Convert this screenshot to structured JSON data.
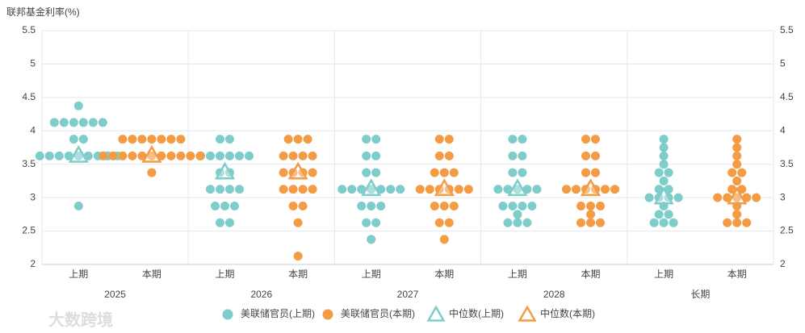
{
  "chart_data": {
    "type": "dot",
    "y_label": "联邦基金利率(%)",
    "groups": [
      "2025",
      "2026",
      "2027",
      "2028",
      "长期"
    ],
    "subcategories": [
      "上期",
      "本期"
    ],
    "ylim": [
      2,
      5.5
    ],
    "yticks": [
      2,
      2.5,
      3,
      3.5,
      4,
      4.5,
      5,
      5.5
    ],
    "grid": true,
    "series": [
      {
        "name": "美联储官员(上期)",
        "color": "#7ecdcb",
        "marker": "circle",
        "sub": 0,
        "values": [
          [
            4.375,
            4.125,
            4.125,
            4.125,
            4.125,
            4.125,
            4.125,
            3.875,
            3.875,
            3.625,
            3.625,
            3.625,
            3.625,
            3.625,
            3.625,
            3.625,
            3.625,
            3.625,
            2.875
          ],
          [
            3.875,
            3.875,
            3.625,
            3.625,
            3.625,
            3.625,
            3.625,
            3.625,
            3.375,
            3.375,
            3.125,
            3.125,
            3.125,
            3.125,
            2.875,
            2.875,
            2.875,
            2.625,
            2.625
          ],
          [
            3.875,
            3.875,
            3.625,
            3.625,
            3.375,
            3.375,
            3.125,
            3.125,
            3.125,
            3.125,
            3.125,
            3.125,
            3.125,
            2.875,
            2.875,
            2.875,
            2.625,
            2.625,
            2.375
          ],
          [
            3.875,
            3.875,
            3.625,
            3.625,
            3.375,
            3.375,
            3.125,
            3.125,
            3.125,
            3.125,
            3.125,
            2.875,
            2.875,
            2.875,
            2.875,
            2.75,
            2.625,
            2.625,
            2.625
          ],
          [
            3.875,
            3.75,
            3.625,
            3.5,
            3.375,
            3.375,
            3.25,
            3.125,
            3.125,
            3,
            3,
            3,
            3,
            2.875,
            2.75,
            2.75,
            2.625,
            2.625,
            2.625
          ]
        ]
      },
      {
        "name": "美联储官员(本期)",
        "color": "#f39c45",
        "marker": "circle",
        "sub": 1,
        "values": [
          [
            3.875,
            3.875,
            3.875,
            3.875,
            3.875,
            3.875,
            3.875,
            3.625,
            3.625,
            3.625,
            3.625,
            3.625,
            3.625,
            3.625,
            3.625,
            3.625,
            3.625,
            3.625,
            3.375
          ],
          [
            3.875,
            3.875,
            3.875,
            3.625,
            3.625,
            3.625,
            3.625,
            3.375,
            3.375,
            3.375,
            3.375,
            3.125,
            3.125,
            3.125,
            3.125,
            2.875,
            2.875,
            2.625,
            2.125
          ],
          [
            3.875,
            3.875,
            3.625,
            3.625,
            3.375,
            3.375,
            3.375,
            3.125,
            3.125,
            3.125,
            3.125,
            3.125,
            3.125,
            2.875,
            2.875,
            2.875,
            2.625,
            2.625,
            2.375
          ],
          [
            3.875,
            3.875,
            3.625,
            3.625,
            3.375,
            3.375,
            3.125,
            3.125,
            3.125,
            3.125,
            3.125,
            3.125,
            2.875,
            2.875,
            2.875,
            2.75,
            2.625,
            2.625,
            2.625
          ],
          [
            3.875,
            3.75,
            3.625,
            3.5,
            3.375,
            3.375,
            3.25,
            3.125,
            3.125,
            3,
            3,
            3,
            3,
            3,
            2.875,
            2.75,
            2.625,
            2.625,
            2.625
          ]
        ]
      },
      {
        "name": "中位数(上期)",
        "color": "#7ecdcb",
        "marker": "triangle",
        "sub": 0,
        "values": [
          3.625,
          3.375,
          3.125,
          3.125,
          3
        ]
      },
      {
        "name": "中位数(本期)",
        "color": "#f39c45",
        "marker": "triangle",
        "sub": 1,
        "values": [
          3.625,
          3.375,
          3.125,
          3.125,
          3
        ]
      }
    ],
    "watermark": "大数跨境"
  }
}
